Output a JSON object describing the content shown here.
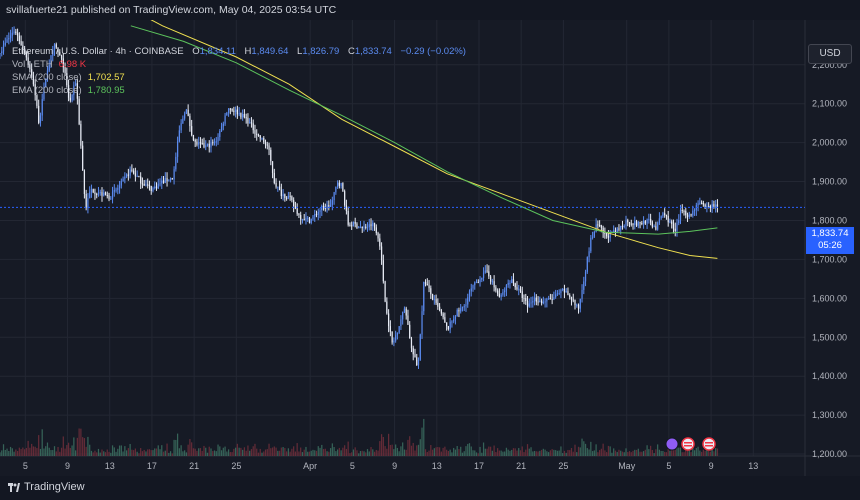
{
  "header": {
    "user": "svillafuerte21",
    "published": "published on TradingView.com, May 04, 2025 03:54 UTC"
  },
  "legend": {
    "symbol": "Ethereum / U.S. Dollar · 4h · COINBASE",
    "open_label": "O",
    "open": "1,834.11",
    "high_label": "H",
    "high": "1,849.64",
    "low_label": "L",
    "low": "1,826.79",
    "close_label": "C",
    "close": "1,833.74",
    "change": "−0.29 (−0.02%)",
    "vol_label": "Vol · ETH",
    "vol_value": "6.98 K",
    "sma_label": "SMA (200 close)",
    "sma_value": "1,702.57",
    "ema_label": "EMA (200 close)",
    "ema_value": "1,780.95"
  },
  "currency": "USD",
  "price_tag": {
    "price": "1,833.74",
    "countdown": "05:26"
  },
  "footer": {
    "brand": "TradingView"
  },
  "colors": {
    "up": "#5b8bf0",
    "down": "#e8ecf6",
    "sma": "#f0e050",
    "ema": "#5cc35c",
    "vol_up": "#3a6b5e",
    "vol_down": "#6b2e3a",
    "grid": "#232733",
    "price_line": "#2962ff"
  },
  "chart_data": {
    "type": "candlestick",
    "y_axis_ticks": [
      "2,200.00",
      "2,100.00",
      "2,000.00",
      "1,900.00",
      "1,800.00",
      "1,700.00",
      "1,600.00",
      "1,500.00",
      "1,400.00",
      "1,300.00",
      "1,200.00"
    ],
    "y_axis_values": [
      2200,
      2100,
      2000,
      1900,
      1800,
      1700,
      1600,
      1500,
      1400,
      1300,
      1200
    ],
    "ylim": [
      1195,
      2315
    ],
    "x_axis_ticks": [
      "5",
      "9",
      "13",
      "17",
      "21",
      "25",
      "Apr",
      "5",
      "9",
      "13",
      "17",
      "21",
      "25",
      "May",
      "5",
      "9",
      "13"
    ],
    "x_axis_days": [
      5,
      9,
      13,
      17,
      21,
      25,
      32,
      36,
      40,
      44,
      48,
      52,
      56,
      62,
      66,
      70,
      74
    ],
    "x_start_day": 2.6,
    "x_end_day": 78.9,
    "price_path": [
      [
        2.6,
        2230
      ],
      [
        3.2,
        2260
      ],
      [
        4.0,
        2290
      ],
      [
        5.0,
        2230
      ],
      [
        5.8,
        2150
      ],
      [
        6.3,
        2050
      ],
      [
        7.0,
        2180
      ],
      [
        7.8,
        2250
      ],
      [
        8.6,
        2200
      ],
      [
        9.2,
        2100
      ],
      [
        9.8,
        2160
      ],
      [
        10.3,
        1980
      ],
      [
        10.7,
        1830
      ],
      [
        11.2,
        1880
      ],
      [
        12.0,
        1870
      ],
      [
        13.0,
        1860
      ],
      [
        14.0,
        1890
      ],
      [
        15.0,
        1930
      ],
      [
        16.0,
        1900
      ],
      [
        17.0,
        1880
      ],
      [
        18.0,
        1900
      ],
      [
        19.0,
        1910
      ],
      [
        19.6,
        2030
      ],
      [
        20.2,
        2090
      ],
      [
        21.0,
        2000
      ],
      [
        22.0,
        1990
      ],
      [
        23.0,
        2000
      ],
      [
        23.6,
        2040
      ],
      [
        24.2,
        2090
      ],
      [
        25.0,
        2080
      ],
      [
        26.0,
        2060
      ],
      [
        27.0,
        2020
      ],
      [
        28.0,
        1990
      ],
      [
        28.6,
        1900
      ],
      [
        29.2,
        1870
      ],
      [
        30.0,
        1860
      ],
      [
        31.0,
        1810
      ],
      [
        32.0,
        1800
      ],
      [
        33.0,
        1830
      ],
      [
        34.0,
        1840
      ],
      [
        34.6,
        1900
      ],
      [
        35.0,
        1890
      ],
      [
        35.6,
        1790
      ],
      [
        36.2,
        1790
      ],
      [
        37.0,
        1780
      ],
      [
        38.0,
        1790
      ],
      [
        38.6,
        1740
      ],
      [
        39.2,
        1570
      ],
      [
        39.8,
        1480
      ],
      [
        40.4,
        1530
      ],
      [
        41.0,
        1580
      ],
      [
        41.6,
        1470
      ],
      [
        42.2,
        1420
      ],
      [
        42.8,
        1650
      ],
      [
        43.6,
        1600
      ],
      [
        44.4,
        1560
      ],
      [
        45.0,
        1520
      ],
      [
        45.8,
        1560
      ],
      [
        46.6,
        1580
      ],
      [
        47.2,
        1620
      ],
      [
        48.0,
        1650
      ],
      [
        48.8,
        1670
      ],
      [
        49.4,
        1630
      ],
      [
        50.0,
        1600
      ],
      [
        51.0,
        1650
      ],
      [
        52.0,
        1610
      ],
      [
        52.6,
        1580
      ],
      [
        53.2,
        1600
      ],
      [
        54.0,
        1590
      ],
      [
        55.0,
        1600
      ],
      [
        56.0,
        1620
      ],
      [
        56.8,
        1600
      ],
      [
        57.4,
        1570
      ],
      [
        58.0,
        1660
      ],
      [
        58.6,
        1750
      ],
      [
        59.2,
        1790
      ],
      [
        60.0,
        1760
      ],
      [
        61.0,
        1770
      ],
      [
        62.0,
        1800
      ],
      [
        63.0,
        1790
      ],
      [
        64.0,
        1800
      ],
      [
        64.8,
        1780
      ],
      [
        65.4,
        1820
      ],
      [
        66.0,
        1800
      ],
      [
        66.6,
        1770
      ],
      [
        67.2,
        1830
      ],
      [
        68.0,
        1810
      ],
      [
        68.8,
        1850
      ],
      [
        69.4,
        1830
      ],
      [
        70.2,
        1840
      ],
      [
        70.6,
        1833.74
      ]
    ],
    "sma_200": [
      [
        11.0,
        2400
      ],
      [
        18.0,
        2300
      ],
      [
        25.0,
        2220
      ],
      [
        30.0,
        2150
      ],
      [
        35.0,
        2060
      ],
      [
        40.0,
        1990
      ],
      [
        45.0,
        1920
      ],
      [
        50.0,
        1870
      ],
      [
        55.0,
        1820
      ],
      [
        60.0,
        1770
      ],
      [
        65.0,
        1730
      ],
      [
        68.0,
        1710
      ],
      [
        70.6,
        1702.57
      ]
    ],
    "ema_200": [
      [
        15.0,
        2300
      ],
      [
        20.0,
        2260
      ],
      [
        25.0,
        2205
      ],
      [
        30.0,
        2135
      ],
      [
        35.0,
        2070
      ],
      [
        40.0,
        2000
      ],
      [
        45.0,
        1925
      ],
      [
        50.0,
        1860
      ],
      [
        55.0,
        1800
      ],
      [
        60.0,
        1770
      ],
      [
        65.0,
        1765
      ],
      [
        68.0,
        1772
      ],
      [
        70.6,
        1780.95
      ]
    ],
    "volume_scale": 12
  }
}
